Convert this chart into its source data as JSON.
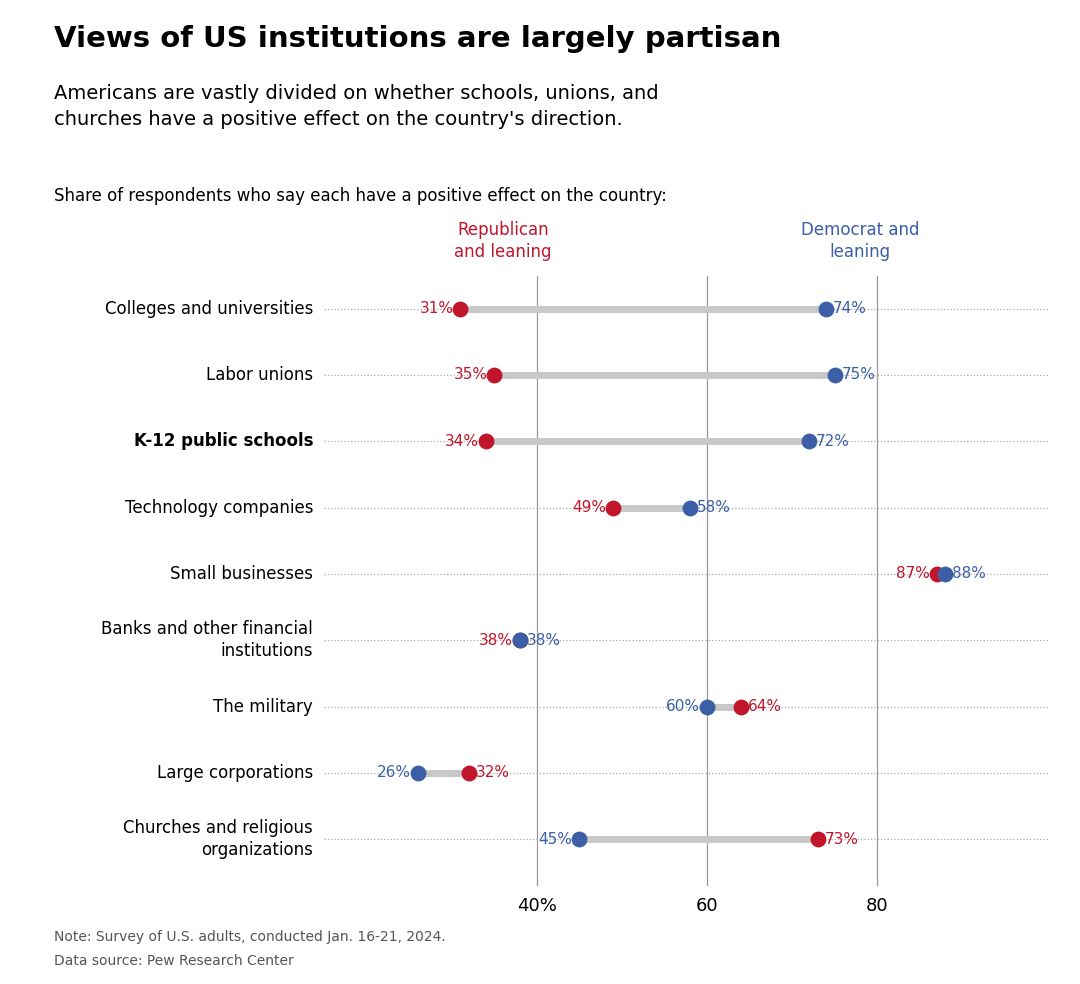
{
  "title": "Views of US institutions are largely partisan",
  "subtitle": "Americans are vastly divided on whether schools, unions, and\nchurches have a positive effect on the country's direction.",
  "share_label": "Share of respondents who say each have a positive effect on the country:",
  "categories": [
    "Colleges and universities",
    "Labor unions",
    "K-12 public schools",
    "Technology companies",
    "Small businesses",
    "Banks and other financial\ninstitutions",
    "The military",
    "Large corporations",
    "Churches and religious\norganizations"
  ],
  "bold_categories": [
    "K-12 public schools"
  ],
  "rep_values": [
    31,
    35,
    34,
    49,
    87,
    38,
    64,
    32,
    73
  ],
  "dem_values": [
    74,
    75,
    72,
    58,
    88,
    38,
    60,
    26,
    45
  ],
  "rep_color": "#C0152B",
  "dem_color": "#3B5EA6",
  "line_color": "#C8C8C8",
  "dot_size": 130,
  "xlim": [
    15,
    100
  ],
  "xticks": [
    40,
    60,
    80
  ],
  "xticklabels": [
    "40%",
    "60",
    "80"
  ],
  "vline_positions": [
    40,
    60,
    80
  ],
  "rep_legend_label": "Republican\nand leaning",
  "dem_legend_label": "Democrat and\nleaning",
  "note": "Note: Survey of U.S. adults, conducted Jan. 16-21, 2024.",
  "source": "Data source: Pew Research Center",
  "bg_color": "#FFFFFF"
}
